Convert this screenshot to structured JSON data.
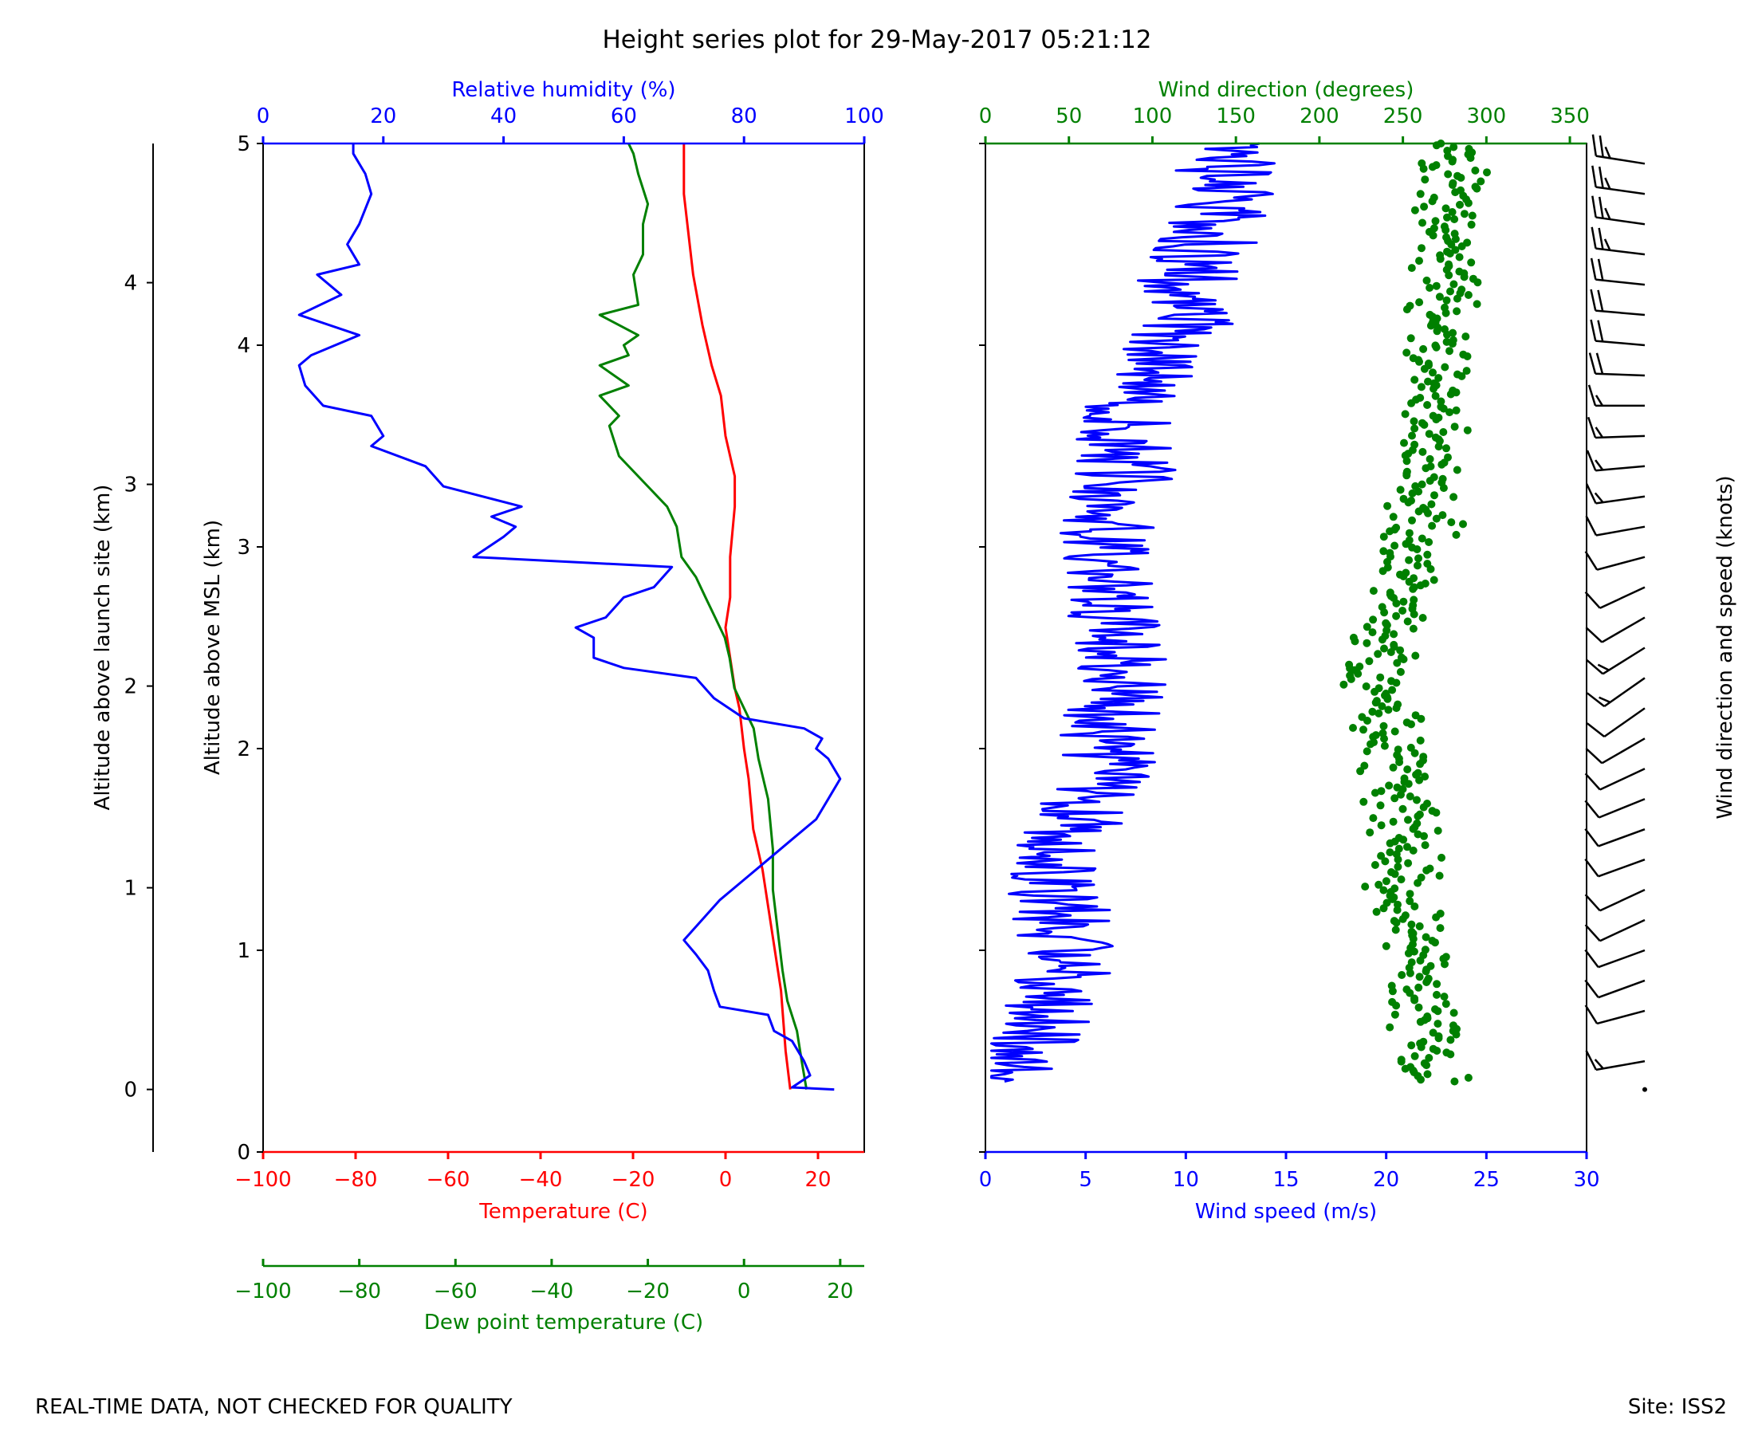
{
  "title": "Height series plot for 29-May-2017 05:21:12",
  "footer": {
    "left": "REAL-TIME DATA, NOT CHECKED FOR QUALITY",
    "right": "Site: ISS2"
  },
  "colors": {
    "temperature": "#ff0000",
    "dewpoint": "#008000",
    "humidity": "#0000ff",
    "wind_speed": "#0000ff",
    "wind_dir": "#008000",
    "axis": "#000000"
  },
  "chart_data": [
    {
      "type": "line",
      "name": "thermo-panel",
      "ylabel_left": "Altitude above launch site (km)",
      "ylabel": "Altitude above MSL (km)",
      "ylim": [
        0,
        5
      ],
      "launch_site_alt_km": 0.31,
      "yticks": [
        "0",
        "1",
        "2",
        "3",
        "4",
        "5"
      ],
      "launch_ticks": [
        "0",
        "1",
        "2",
        "3",
        "4"
      ],
      "axes": {
        "temperature": {
          "label": "Temperature (C)",
          "lim": [
            -100,
            30
          ],
          "ticks": [
            "−100",
            "−80",
            "−60",
            "−40",
            "−20",
            "0",
            "20"
          ]
        },
        "dewpoint": {
          "label": "Dew point temperature (C)",
          "lim": [
            -100,
            25
          ],
          "ticks": [
            "−100",
            "−80",
            "−60",
            "−40",
            "−20",
            "0",
            "20"
          ]
        },
        "humidity": {
          "label": "Relative humidity (%)",
          "lim": [
            0,
            100
          ],
          "ticks": [
            "0",
            "20",
            "40",
            "60",
            "80",
            "100"
          ]
        }
      },
      "series": [
        {
          "name": "Temperature",
          "axis": "temperature",
          "points": [
            [
              14,
              0.31
            ],
            [
              13,
              0.5
            ],
            [
              12,
              0.8
            ],
            [
              10,
              1.1
            ],
            [
              8,
              1.4
            ],
            [
              6,
              1.6
            ],
            [
              5,
              1.85
            ],
            [
              4,
              2.0
            ],
            [
              3,
              2.2
            ],
            [
              2,
              2.3
            ],
            [
              1,
              2.45
            ],
            [
              0,
              2.6
            ],
            [
              1,
              2.75
            ],
            [
              1,
              2.95
            ],
            [
              2,
              3.2
            ],
            [
              2,
              3.35
            ],
            [
              0,
              3.55
            ],
            [
              -1,
              3.75
            ],
            [
              -3,
              3.9
            ],
            [
              -5,
              4.1
            ],
            [
              -7,
              4.35
            ],
            [
              -8,
              4.55
            ],
            [
              -9,
              4.75
            ],
            [
              -9,
              4.9
            ],
            [
              -9,
              5.0
            ]
          ]
        },
        {
          "name": "Dew point",
          "axis": "dewpoint",
          "points": [
            [
              13,
              0.31
            ],
            [
              12,
              0.45
            ],
            [
              11,
              0.6
            ],
            [
              9,
              0.75
            ],
            [
              8,
              0.9
            ],
            [
              7,
              1.1
            ],
            [
              6,
              1.3
            ],
            [
              6,
              1.5
            ],
            [
              5,
              1.75
            ],
            [
              3,
              1.95
            ],
            [
              2,
              2.1
            ],
            [
              0,
              2.2
            ],
            [
              -2,
              2.3
            ],
            [
              -3,
              2.45
            ],
            [
              -4,
              2.55
            ],
            [
              -6,
              2.65
            ],
            [
              -8,
              2.75
            ],
            [
              -10,
              2.85
            ],
            [
              -13,
              2.95
            ],
            [
              -14,
              3.1
            ],
            [
              -16,
              3.2
            ],
            [
              -20,
              3.3
            ],
            [
              -26,
              3.45
            ],
            [
              -28,
              3.6
            ],
            [
              -26,
              3.65
            ],
            [
              -30,
              3.75
            ],
            [
              -24,
              3.8
            ],
            [
              -30,
              3.9
            ],
            [
              -24,
              3.95
            ],
            [
              -25,
              4.0
            ],
            [
              -22,
              4.05
            ],
            [
              -30,
              4.15
            ],
            [
              -22,
              4.2
            ],
            [
              -23,
              4.35
            ],
            [
              -21,
              4.45
            ],
            [
              -21,
              4.6
            ],
            [
              -20,
              4.7
            ],
            [
              -22,
              4.85
            ],
            [
              -23,
              4.95
            ],
            [
              -24,
              5.0
            ]
          ]
        },
        {
          "name": "Relative humidity",
          "axis": "humidity",
          "points": [
            [
              95,
              0.31
            ],
            [
              88,
              0.32
            ],
            [
              91,
              0.38
            ],
            [
              90,
              0.45
            ],
            [
              88,
              0.55
            ],
            [
              85,
              0.6
            ],
            [
              84,
              0.68
            ],
            [
              76,
              0.72
            ],
            [
              75,
              0.8
            ],
            [
              74,
              0.9
            ],
            [
              72,
              0.98
            ],
            [
              70,
              1.05
            ],
            [
              73,
              1.15
            ],
            [
              76,
              1.25
            ],
            [
              80,
              1.35
            ],
            [
              84,
              1.45
            ],
            [
              88,
              1.55
            ],
            [
              92,
              1.65
            ],
            [
              94,
              1.75
            ],
            [
              96,
              1.85
            ],
            [
              94,
              1.95
            ],
            [
              92,
              2.0
            ],
            [
              93,
              2.05
            ],
            [
              90,
              2.1
            ],
            [
              80,
              2.15
            ],
            [
              75,
              2.25
            ],
            [
              72,
              2.35
            ],
            [
              60,
              2.4
            ],
            [
              55,
              2.45
            ],
            [
              55,
              2.55
            ],
            [
              52,
              2.6
            ],
            [
              57,
              2.65
            ],
            [
              60,
              2.75
            ],
            [
              65,
              2.8
            ],
            [
              68,
              2.9
            ],
            [
              35,
              2.95
            ],
            [
              40,
              3.05
            ],
            [
              42,
              3.1
            ],
            [
              38,
              3.15
            ],
            [
              43,
              3.2
            ],
            [
              30,
              3.3
            ],
            [
              27,
              3.4
            ],
            [
              18,
              3.5
            ],
            [
              20,
              3.55
            ],
            [
              18,
              3.65
            ],
            [
              10,
              3.7
            ],
            [
              7,
              3.8
            ],
            [
              6,
              3.9
            ],
            [
              8,
              3.95
            ],
            [
              16,
              4.05
            ],
            [
              6,
              4.15
            ],
            [
              13,
              4.25
            ],
            [
              9,
              4.35
            ],
            [
              16,
              4.4
            ],
            [
              14,
              4.5
            ],
            [
              16,
              4.6
            ],
            [
              18,
              4.75
            ],
            [
              17,
              4.85
            ],
            [
              15,
              4.95
            ],
            [
              15,
              5.0
            ]
          ]
        }
      ]
    },
    {
      "type": "scatter",
      "name": "wind-panel",
      "ylim": [
        0,
        5
      ],
      "axes": {
        "wind_speed": {
          "label": "Wind speed (m/s)",
          "lim": [
            0,
            30
          ],
          "ticks": [
            "0",
            "5",
            "10",
            "15",
            "20",
            "25",
            "30"
          ]
        },
        "wind_dir": {
          "label": "Wind direction (degrees)",
          "lim": [
            0,
            360
          ],
          "ticks": [
            "0",
            "50",
            "100",
            "150",
            "200",
            "250",
            "300",
            "350"
          ]
        }
      },
      "barb_label": "Wind direction and speed (knots)",
      "series": [
        {
          "name": "Wind speed",
          "axis": "wind_speed",
          "kind": "line",
          "trend": [
            [
              1,
              0.35
            ],
            [
              2,
              0.5
            ],
            [
              3,
              0.7
            ],
            [
              4,
              0.9
            ],
            [
              4,
              1.1
            ],
            [
              3.5,
              1.3
            ],
            [
              4,
              1.5
            ],
            [
              5,
              1.7
            ],
            [
              6,
              1.9
            ],
            [
              6,
              2.1
            ],
            [
              7,
              2.3
            ],
            [
              7,
              2.5
            ],
            [
              6,
              2.7
            ],
            [
              6,
              2.9
            ],
            [
              6,
              3.1
            ],
            [
              7,
              3.3
            ],
            [
              7,
              3.5
            ],
            [
              7,
              3.7
            ],
            [
              9,
              3.9
            ],
            [
              10,
              4.1
            ],
            [
              10,
              4.3
            ],
            [
              11,
              4.5
            ],
            [
              12,
              4.7
            ],
            [
              12,
              4.9
            ],
            [
              12,
              5.0
            ]
          ],
          "amplitude": 2.5
        },
        {
          "name": "Wind direction",
          "axis": "wind_dir",
          "kind": "scatter",
          "trend": [
            [
              270,
              0.35
            ],
            [
              265,
              0.6
            ],
            [
              262,
              0.9
            ],
            [
              255,
              1.1
            ],
            [
              248,
              1.3
            ],
            [
              252,
              1.5
            ],
            [
              250,
              1.7
            ],
            [
              248,
              1.9
            ],
            [
              240,
              2.1
            ],
            [
              235,
              2.3
            ],
            [
              238,
              2.5
            ],
            [
              245,
              2.7
            ],
            [
              255,
              2.9
            ],
            [
              262,
              3.1
            ],
            [
              265,
              3.3
            ],
            [
              268,
              3.5
            ],
            [
              270,
              3.7
            ],
            [
              272,
              3.9
            ],
            [
              275,
              4.1
            ],
            [
              276,
              4.3
            ],
            [
              277,
              4.5
            ],
            [
              278,
              4.7
            ],
            [
              279,
              5.0
            ]
          ],
          "spread": 18
        }
      ],
      "barbs": [
        {
          "alt": 0.31,
          "dir": 270,
          "kts": 2
        },
        {
          "alt": 0.45,
          "dir": 260,
          "kts": 15
        },
        {
          "alt": 0.7,
          "dir": 255,
          "kts": 12
        },
        {
          "alt": 0.85,
          "dir": 250,
          "kts": 10
        },
        {
          "alt": 1.0,
          "dir": 250,
          "kts": 12
        },
        {
          "alt": 1.15,
          "dir": 245,
          "kts": 8
        },
        {
          "alt": 1.3,
          "dir": 245,
          "kts": 10
        },
        {
          "alt": 1.45,
          "dir": 250,
          "kts": 12
        },
        {
          "alt": 1.6,
          "dir": 250,
          "kts": 10
        },
        {
          "alt": 1.75,
          "dir": 248,
          "kts": 10
        },
        {
          "alt": 1.9,
          "dir": 245,
          "kts": 12
        },
        {
          "alt": 2.05,
          "dir": 240,
          "kts": 10
        },
        {
          "alt": 2.2,
          "dir": 235,
          "kts": 12
        },
        {
          "alt": 2.35,
          "dir": 235,
          "kts": 15
        },
        {
          "alt": 2.5,
          "dir": 238,
          "kts": 14
        },
        {
          "alt": 2.65,
          "dir": 240,
          "kts": 12
        },
        {
          "alt": 2.8,
          "dir": 245,
          "kts": 12
        },
        {
          "alt": 2.95,
          "dir": 255,
          "kts": 8
        },
        {
          "alt": 3.1,
          "dir": 260,
          "kts": 10
        },
        {
          "alt": 3.25,
          "dir": 262,
          "kts": 15
        },
        {
          "alt": 3.4,
          "dir": 265,
          "kts": 15
        },
        {
          "alt": 3.55,
          "dir": 268,
          "kts": 15
        },
        {
          "alt": 3.7,
          "dir": 270,
          "kts": 15
        },
        {
          "alt": 3.85,
          "dir": 272,
          "kts": 18
        },
        {
          "alt": 4.0,
          "dir": 275,
          "kts": 20
        },
        {
          "alt": 4.15,
          "dir": 275,
          "kts": 20
        },
        {
          "alt": 4.3,
          "dir": 276,
          "kts": 22
        },
        {
          "alt": 4.45,
          "dir": 277,
          "kts": 25
        },
        {
          "alt": 4.6,
          "dir": 278,
          "kts": 25
        },
        {
          "alt": 4.75,
          "dir": 278,
          "kts": 25
        },
        {
          "alt": 4.9,
          "dir": 279,
          "kts": 25
        }
      ]
    }
  ]
}
